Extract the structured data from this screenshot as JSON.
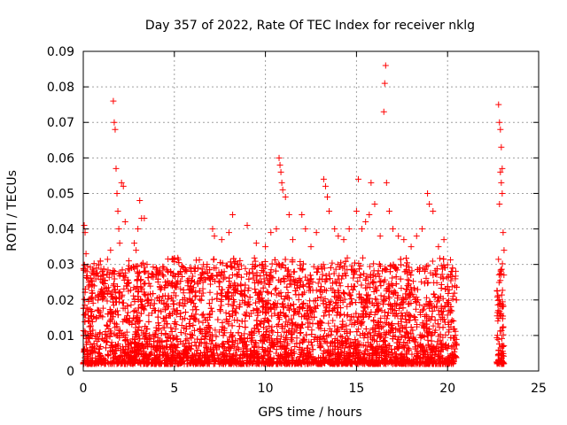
{
  "chart_data": {
    "type": "scatter",
    "title": "Day 357 of 2022, Rate Of TEC Index for receiver nklg",
    "xlabel": "GPS time / hours",
    "ylabel": "ROTI / TECUs",
    "xlim": [
      0,
      25
    ],
    "ylim": [
      0,
      0.09
    ],
    "xticks": [
      "0",
      "5",
      "10",
      "15",
      "20",
      "25"
    ],
    "yticks": [
      "0",
      "0.01",
      "0.02",
      "0.03",
      "0.04",
      "0.05",
      "0.06",
      "0.07",
      "0.08",
      "0.09"
    ],
    "grid": true,
    "marker": "+",
    "color": "#ff0000",
    "coverage": [
      [
        0,
        20.5
      ],
      [
        22.7,
        23.1
      ]
    ],
    "series": [
      {
        "points": [
          [
            0.05,
            0.041
          ],
          [
            0.1,
            0.039
          ],
          [
            0.15,
            0.033
          ],
          [
            0.2,
            0.028
          ],
          [
            0.3,
            0.025
          ],
          [
            0.5,
            0.022
          ],
          [
            1.0,
            0.023
          ],
          [
            1.5,
            0.034
          ],
          [
            1.65,
            0.076
          ],
          [
            1.7,
            0.07
          ],
          [
            1.75,
            0.068
          ],
          [
            1.8,
            0.057
          ],
          [
            1.85,
            0.05
          ],
          [
            1.9,
            0.045
          ],
          [
            1.95,
            0.04
          ],
          [
            2.0,
            0.036
          ],
          [
            2.1,
            0.053
          ],
          [
            2.2,
            0.052
          ],
          [
            2.3,
            0.042
          ],
          [
            2.5,
            0.031
          ],
          [
            2.8,
            0.036
          ],
          [
            2.9,
            0.034
          ],
          [
            3.0,
            0.04
          ],
          [
            3.1,
            0.048
          ],
          [
            3.2,
            0.043
          ],
          [
            3.35,
            0.043
          ],
          [
            3.5,
            0.03
          ],
          [
            4.2,
            0.028
          ],
          [
            4.5,
            0.025
          ],
          [
            5.0,
            0.024
          ],
          [
            5.5,
            0.022
          ],
          [
            5.8,
            0.026
          ],
          [
            6.3,
            0.025
          ],
          [
            6.8,
            0.03
          ],
          [
            7.1,
            0.04
          ],
          [
            7.2,
            0.038
          ],
          [
            7.6,
            0.037
          ],
          [
            8.0,
            0.039
          ],
          [
            8.2,
            0.044
          ],
          [
            8.5,
            0.03
          ],
          [
            9.0,
            0.041
          ],
          [
            9.3,
            0.03
          ],
          [
            9.5,
            0.036
          ],
          [
            9.8,
            0.03
          ],
          [
            10.0,
            0.035
          ],
          [
            10.3,
            0.039
          ],
          [
            10.6,
            0.04
          ],
          [
            10.75,
            0.06
          ],
          [
            10.8,
            0.058
          ],
          [
            10.85,
            0.056
          ],
          [
            10.9,
            0.053
          ],
          [
            10.95,
            0.051
          ],
          [
            11.1,
            0.049
          ],
          [
            11.3,
            0.044
          ],
          [
            11.5,
            0.037
          ],
          [
            12.0,
            0.044
          ],
          [
            12.2,
            0.04
          ],
          [
            12.5,
            0.035
          ],
          [
            12.8,
            0.039
          ],
          [
            13.2,
            0.054
          ],
          [
            13.3,
            0.052
          ],
          [
            13.4,
            0.049
          ],
          [
            13.5,
            0.045
          ],
          [
            13.8,
            0.04
          ],
          [
            14.0,
            0.038
          ],
          [
            14.3,
            0.037
          ],
          [
            14.6,
            0.04
          ],
          [
            15.0,
            0.045
          ],
          [
            15.1,
            0.054
          ],
          [
            15.3,
            0.04
          ],
          [
            15.5,
            0.042
          ],
          [
            15.7,
            0.044
          ],
          [
            15.8,
            0.053
          ],
          [
            16.0,
            0.047
          ],
          [
            16.3,
            0.038
          ],
          [
            16.5,
            0.073
          ],
          [
            16.55,
            0.081
          ],
          [
            16.6,
            0.086
          ],
          [
            16.65,
            0.053
          ],
          [
            16.8,
            0.045
          ],
          [
            17.0,
            0.04
          ],
          [
            17.3,
            0.038
          ],
          [
            17.6,
            0.037
          ],
          [
            18.0,
            0.035
          ],
          [
            18.3,
            0.038
          ],
          [
            18.6,
            0.04
          ],
          [
            18.9,
            0.05
          ],
          [
            19.0,
            0.047
          ],
          [
            19.2,
            0.045
          ],
          [
            19.5,
            0.035
          ],
          [
            19.8,
            0.037
          ],
          [
            20.2,
            0.028
          ],
          [
            20.4,
            0.024
          ],
          [
            22.8,
            0.075
          ],
          [
            22.85,
            0.07
          ],
          [
            22.9,
            0.068
          ],
          [
            22.95,
            0.063
          ],
          [
            23.0,
            0.057
          ],
          [
            22.9,
            0.056
          ],
          [
            22.95,
            0.053
          ],
          [
            23.0,
            0.05
          ],
          [
            22.85,
            0.047
          ],
          [
            23.05,
            0.039
          ],
          [
            23.1,
            0.034
          ]
        ]
      }
    ]
  }
}
